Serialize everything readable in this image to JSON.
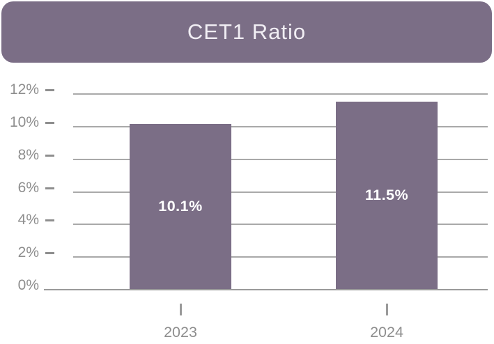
{
  "header": {
    "title": "CET1 Ratio"
  },
  "colors": {
    "accent_purple": "#7b6e86",
    "gridline_gray": "#a9a9a9",
    "axis_gray": "#9a9a9a",
    "label_gray": "#8e8e8e",
    "bar_label_white": "#ffffff",
    "title_text": "#f1eef4",
    "background": "#ffffff"
  },
  "chart_data": {
    "type": "bar",
    "title": "CET1 Ratio",
    "categories": [
      "2023",
      "2024"
    ],
    "values": [
      10.1,
      11.5
    ],
    "value_labels": [
      "10.1%",
      "11.5%"
    ],
    "yticks": [
      0,
      2,
      4,
      6,
      8,
      10,
      12
    ],
    "ytick_labels": [
      "0%",
      "2%",
      "4%",
      "6%",
      "8%",
      "10%",
      "12%"
    ],
    "ylim": [
      0,
      12
    ],
    "ylabel": "",
    "xlabel": "",
    "grid": true,
    "legend": "none",
    "bar_color": "#7b6e86"
  }
}
